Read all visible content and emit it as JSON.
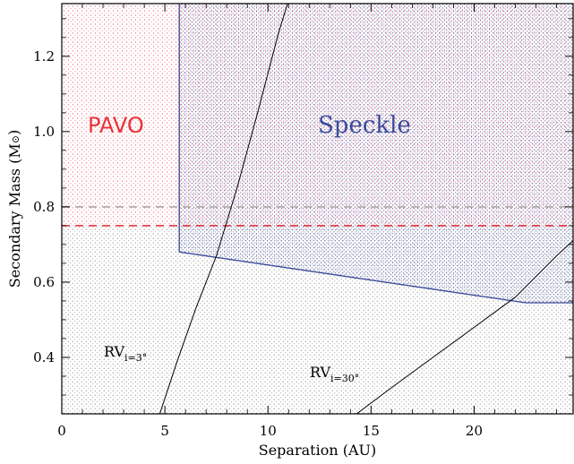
{
  "chart_data": {
    "type": "area",
    "xlabel": "Separation (AU)",
    "ylabel": "Secondary Mass (M",
    "ylabel_symbol": "⊙",
    "ylabel_close": ")",
    "xlim": [
      0,
      24.8
    ],
    "ylim": [
      0.25,
      1.34
    ],
    "x_ticks": [
      0,
      5,
      10,
      15,
      20
    ],
    "x_tick_labels": [
      "0",
      "5",
      "10",
      "15",
      "20"
    ],
    "y_ticks": [
      0.4,
      0.6,
      0.8,
      1.0,
      1.2
    ],
    "y_tick_labels": [
      "0.4",
      "0.6",
      "0.8",
      "1.0",
      "1.2"
    ],
    "regions": [
      {
        "name": "PAVO",
        "color": "#e8323c",
        "x_range": [
          0,
          24.8
        ],
        "mass_above": 0.75
      },
      {
        "name": "Speckle",
        "color": "#3a4a9a",
        "boundary": [
          [
            5.7,
            1.34
          ],
          [
            5.7,
            0.68
          ],
          [
            22.5,
            0.545
          ],
          [
            24.8,
            0.545
          ],
          [
            24.8,
            1.34
          ]
        ]
      },
      {
        "name": "RV",
        "color": "#555555",
        "mass_below": 0.75
      }
    ],
    "reference_lines": [
      {
        "y": 0.75,
        "style": "dashed",
        "color": "#e8323c"
      },
      {
        "y": 0.8,
        "style": "dashed",
        "color": "#aaaaaa"
      }
    ],
    "curves": [
      {
        "series": "i=3",
        "x": [
          4.75,
          5.6,
          6.5,
          7.5,
          8.5,
          9.5,
          10.5,
          10.95
        ],
        "y": [
          0.25,
          0.39,
          0.53,
          0.67,
          0.85,
          1.05,
          1.26,
          1.34
        ]
      },
      {
        "series": "i=30",
        "x": [
          14.3,
          16,
          18,
          20,
          22,
          24,
          24.8
        ],
        "y": [
          0.25,
          0.32,
          0.4,
          0.48,
          0.56,
          0.67,
          0.71
        ]
      }
    ],
    "annotations": {
      "pavo": "PAVO",
      "speckle": "Speckle",
      "rv3_main": "RV",
      "rv3_sub": "i=3°",
      "rv30_main": "RV",
      "rv30_sub": "i=30°"
    },
    "colors": {
      "pavo": "#e8323c",
      "speckle": "#3a4a9a",
      "rv": "#555555",
      "axis": "#000000"
    }
  }
}
